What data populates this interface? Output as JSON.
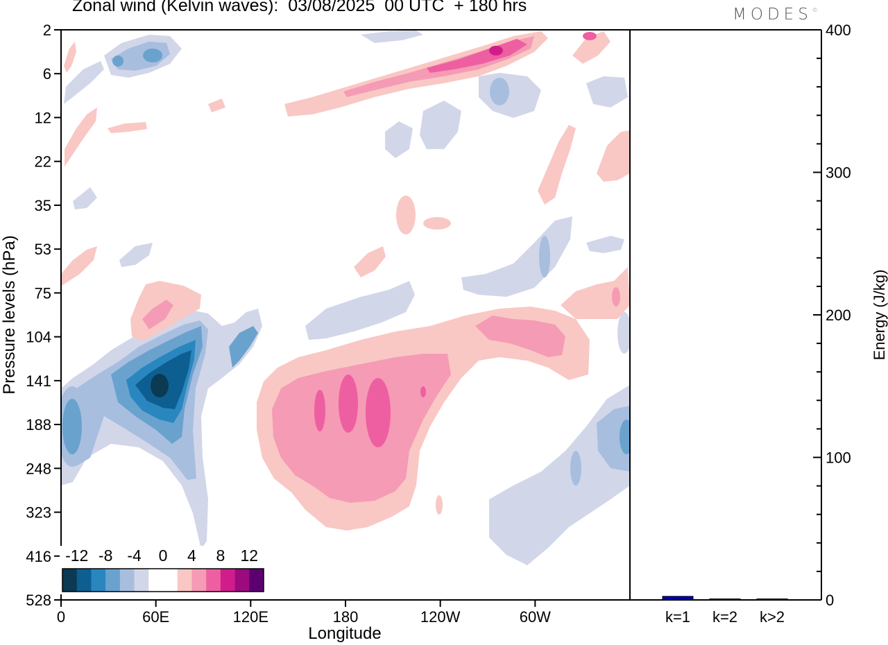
{
  "title": "Zonal wind (Kelvin waves):  03/08/2025  00 UTC  + 180 hrs",
  "logo": {
    "text": "MODES",
    "mark": "©"
  },
  "chart_data": [
    {
      "type": "heatmap",
      "title": "Zonal wind (Kelvin waves):  03/08/2025  00 UTC  + 180 hrs",
      "xlabel": "Longitude",
      "ylabel": "Pressure levels (hPa)",
      "x_ticks": [
        "0",
        "60E",
        "120E",
        "180",
        "120W",
        "60W"
      ],
      "x_tick_values": [
        0,
        60,
        120,
        180,
        240,
        300
      ],
      "xlim": [
        0,
        360
      ],
      "y_ticks": [
        "2",
        "6",
        "12",
        "22",
        "35",
        "53",
        "75",
        "104",
        "141",
        "188",
        "248",
        "323",
        "416",
        "528"
      ],
      "colorbar": {
        "labels": [
          "-12",
          "-8",
          "-4",
          "0",
          "4",
          "8",
          "12"
        ],
        "colors": [
          "#0b3a52",
          "#0d5f91",
          "#2a86bf",
          "#6aa2ce",
          "#a7bedf",
          "#d2d6e9",
          "#ffffff",
          "#ffffff",
          "#f9c8c4",
          "#f59bb5",
          "#ee5fa1",
          "#d01d8b",
          "#9b0b7e",
          "#5c0071"
        ]
      },
      "features": [
        {
          "sign": "negative",
          "lon": 63,
          "level": "141",
          "peak": -13
        },
        {
          "sign": "negative",
          "lon": 8,
          "level": "188",
          "peak": -5
        },
        {
          "sign": "negative",
          "lon": 350,
          "level": "188",
          "peak": -5
        },
        {
          "sign": "negative",
          "lon": 37,
          "level": "6",
          "peak": -7
        },
        {
          "sign": "positive",
          "lon": 195,
          "level": "188",
          "peak": 7
        },
        {
          "sign": "positive",
          "lon": 272,
          "level": "104",
          "peak": 5
        },
        {
          "sign": "positive",
          "lon": 265,
          "level": "6",
          "peak": 9
        },
        {
          "sign": "positive",
          "lon": 55,
          "level": "104",
          "peak": 5
        }
      ]
    },
    {
      "type": "bar",
      "categories": [
        "k=1",
        "k=2",
        "k>2"
      ],
      "values": [
        2.5,
        0.5,
        0.5
      ],
      "ylabel": "Energy (J/kg)",
      "ylim": [
        0,
        400
      ],
      "y_ticks": [
        "0",
        "100",
        "200",
        "300",
        "400"
      ],
      "y_tick_values": [
        0,
        100,
        200,
        300,
        400
      ],
      "bar_color": "#0000aa"
    }
  ]
}
